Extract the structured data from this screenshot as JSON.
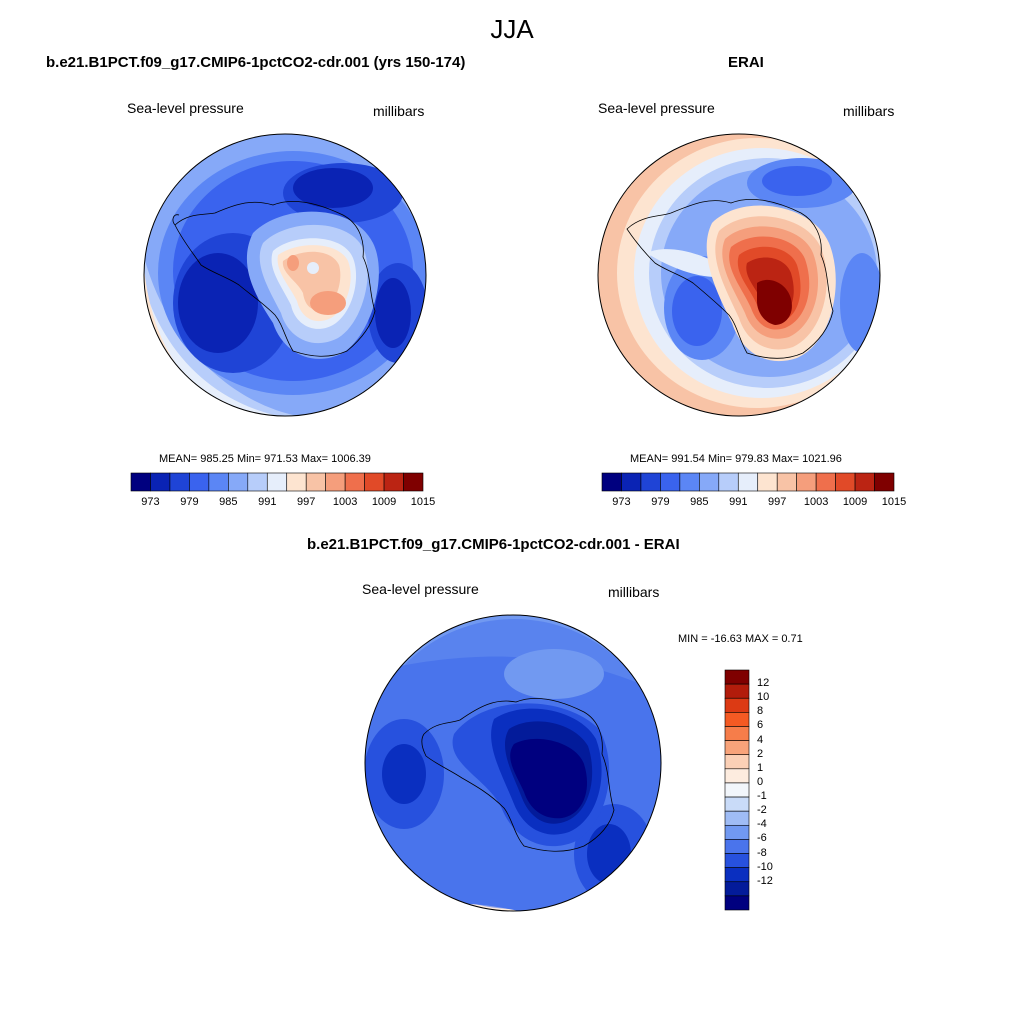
{
  "season": "JJA",
  "panels": [
    {
      "title": "b.e21.B1PCT.f09_g17.CMIP6-1pctCO2-cdr.001 (yrs 150-174)",
      "left_label": "Sea-level pressure",
      "right_label": "millibars",
      "stats": "MEAN= 985.25  Min= 971.53  Max= 1006.39",
      "colorbar": {
        "colors": [
          "#00007f",
          "#0a23b4",
          "#1f44d6",
          "#3a63ee",
          "#5b86f5",
          "#86a9f8",
          "#b7cdfa",
          "#e6eefb",
          "#fde4d0",
          "#f8c3a6",
          "#f59e7c",
          "#ef6f4c",
          "#e14a28",
          "#bb2413",
          "#7f0000"
        ],
        "tick_labels": [
          "973",
          "979",
          "985",
          "991",
          "997",
          "1003",
          "1009",
          "1015"
        ]
      }
    },
    {
      "title": "ERAI",
      "left_label": "Sea-level pressure",
      "right_label": "millibars",
      "stats": "MEAN= 991.54  Min= 979.83  Max= 1021.96",
      "colorbar": {
        "colors": [
          "#00007f",
          "#0a23b4",
          "#1f44d6",
          "#3a63ee",
          "#5b86f5",
          "#86a9f8",
          "#b7cdfa",
          "#e6eefb",
          "#fde4d0",
          "#f8c3a6",
          "#f59e7c",
          "#ef6f4c",
          "#e14a28",
          "#bb2413",
          "#7f0000"
        ],
        "tick_labels": [
          "973",
          "979",
          "985",
          "991",
          "997",
          "1003",
          "1009",
          "1015"
        ]
      }
    },
    {
      "title": "b.e21.B1PCT.f09_g17.CMIP6-1pctCO2-cdr.001 - ERAI",
      "left_label": "Sea-level pressure",
      "right_label": "millibars",
      "stats": "MIN = -16.63 MAX =   0.71",
      "colorbar": {
        "colors": [
          "#7f0000",
          "#b21c0b",
          "#dc3a14",
          "#f45a23",
          "#f67d4a",
          "#f8a37a",
          "#fbd0b6",
          "#fdecdf",
          "#f2f6fb",
          "#c9dbf8",
          "#9fbcf5",
          "#7199f1",
          "#4a74ec",
          "#2751de",
          "#0a2fc0",
          "#031b9a",
          "#00007f"
        ],
        "tick_labels": [
          "12",
          "10",
          "8",
          "6",
          "4",
          "2",
          "1",
          "0",
          "-1",
          "-2",
          "-4",
          "-6",
          "-8",
          "-10",
          "-12"
        ]
      }
    }
  ]
}
